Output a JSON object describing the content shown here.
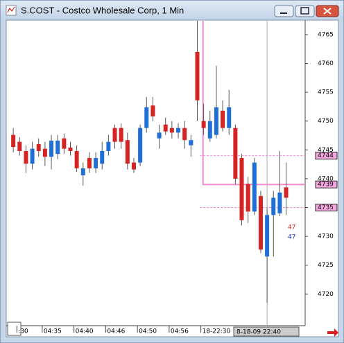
{
  "window_title": "S.COST - Costco Wholesale Corp, 1 Min",
  "chart_data": {
    "type": "candlestick",
    "ylim": [
      4714.5,
      4767.4
    ],
    "yticks": [
      4720,
      4725,
      4730,
      4735,
      4740,
      4745,
      4750,
      4755,
      4760,
      4765
    ],
    "xlim": [
      -1,
      46
    ],
    "xticks": [
      {
        "value": 1,
        "label": ":30"
      },
      {
        "value": 5,
        "label": "04:35"
      },
      {
        "value": 10,
        "label": "04:40"
      },
      {
        "value": 15,
        "label": "04:46"
      },
      {
        "value": 20,
        "label": "04:50"
      },
      {
        "value": 25,
        "label": "04:56"
      },
      {
        "value": 30,
        "label": "18-22:30"
      }
    ],
    "cursor": {
      "value": 40,
      "label": "8-18-09 22:40"
    },
    "up_color": "#1f6fd6",
    "down_color": "#d42424",
    "open": [
      4747.6,
      4746.4,
      4744.8,
      4742.6,
      4746.0,
      4745.2,
      4743.8,
      4744.3,
      4747.0,
      4745.4,
      4744.8,
      4740.6,
      4743.6,
      4741.8,
      4742.6,
      4744.8,
      4748.8,
      4748.8,
      4746.7,
      4742.8,
      4742.8,
      4748.8,
      4752.7,
      4747.0,
      4749.4,
      4748.8,
      4748.0,
      4748.8,
      4745.8,
      4762.0,
      4750.0,
      4747.0,
      4747.6,
      4751.8,
      4748.8,
      4748.8,
      4743.6,
      4739.1,
      4734.3,
      4737.0,
      4726.5,
      4733.7,
      4734.0,
      4738.5
    ],
    "high": [
      4748.8,
      4747.2,
      4745.8,
      4746.4,
      4747.0,
      4746.4,
      4747.6,
      4747.6,
      4747.8,
      4746.4,
      4745.8,
      4742.8,
      4744.6,
      4744.6,
      4746.4,
      4747.6,
      4749.4,
      4749.6,
      4748.0,
      4743.6,
      4749.4,
      4754.2,
      4754.2,
      4749.4,
      4750.6,
      4750.0,
      4749.6,
      4750.0,
      4747.6,
      4767.4,
      4753.0,
      4751.8,
      4759.6,
      4753.6,
      4755.4,
      4749.4,
      4744.3,
      4740.3,
      4743.6,
      4737.9,
      4734.9,
      4737.9,
      4744.8,
      4742.8
    ],
    "low": [
      4744.6,
      4744.0,
      4741.0,
      4741.6,
      4743.8,
      4742.2,
      4741.6,
      4743.4,
      4744.3,
      4744.0,
      4741.2,
      4738.8,
      4741.0,
      4741.0,
      4741.6,
      4744.0,
      4745.2,
      4745.2,
      4741.6,
      4741.0,
      4742.2,
      4748.0,
      4750.0,
      4745.2,
      4747.6,
      4747.0,
      4747.0,
      4745.2,
      4743.8,
      4750.0,
      4747.6,
      4746.4,
      4747.0,
      4748.2,
      4747.6,
      4739.1,
      4731.9,
      4732.3,
      4733.7,
      4727.1,
      4718.5,
      4726.5,
      4733.5,
      4733.7
    ],
    "close": [
      4745.5,
      4744.8,
      4742.6,
      4745.2,
      4744.8,
      4743.8,
      4746.6,
      4746.6,
      4745.2,
      4744.8,
      4741.8,
      4741.8,
      4741.8,
      4743.6,
      4744.8,
      4746.4,
      4746.4,
      4746.4,
      4742.6,
      4741.6,
      4748.8,
      4752.4,
      4750.8,
      4748.0,
      4748.2,
      4748.0,
      4748.8,
      4746.7,
      4746.7,
      4753.6,
      4748.8,
      4750.0,
      4752.4,
      4748.8,
      4752.4,
      4740.0,
      4732.8,
      4734.3,
      4742.8,
      4727.7,
      4733.7,
      4736.7,
      4737.6,
      4736.7
    ],
    "price_lines": [
      {
        "value": 4744,
        "style": "dashed"
      },
      {
        "value": 4739,
        "style": "solid"
      },
      {
        "value": 4735,
        "style": "dashed"
      }
    ],
    "price_line_color": "#f08ad0",
    "annotations": [
      {
        "text": "47",
        "color": "#d42424"
      },
      {
        "text": "47",
        "color": "#1a2fc8"
      }
    ]
  }
}
